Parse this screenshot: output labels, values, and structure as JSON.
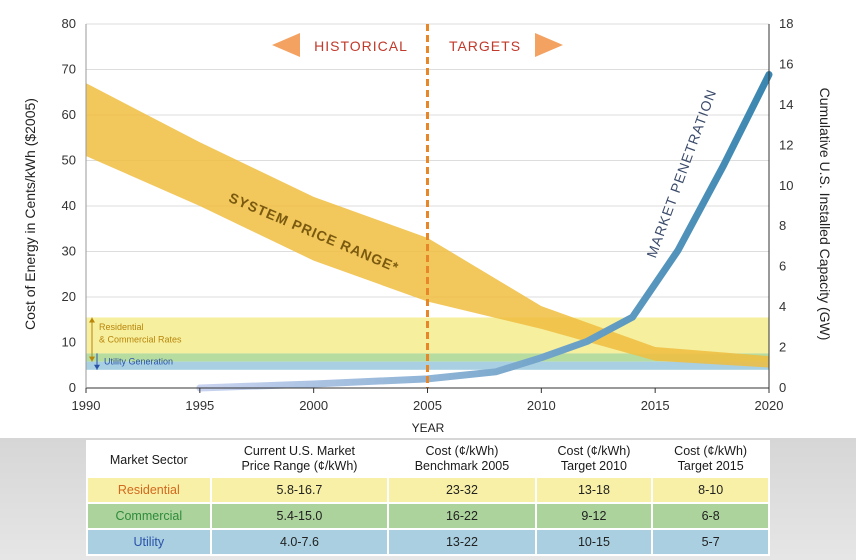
{
  "chart_data": {
    "type": "area",
    "xlabel": "YEAR",
    "ylabel_left": "Cost of Energy in Cents/kWh ($2005)",
    "ylabel_right": "Cumulative U.S. Installed Capacity (GW)",
    "xlim": [
      1990,
      2020
    ],
    "ylim_left": [
      0,
      80
    ],
    "ylim_right": [
      0,
      18
    ],
    "x_ticks": [
      1990,
      1995,
      2000,
      2005,
      2010,
      2015,
      2020
    ],
    "y_ticks_left": [
      0,
      10,
      20,
      30,
      40,
      50,
      60,
      70,
      80
    ],
    "y_ticks_right": [
      0,
      2,
      4,
      6,
      8,
      10,
      12,
      14,
      16,
      18
    ],
    "grid": true,
    "divider_year": 2005,
    "historical_label": "HISTORICAL",
    "targets_label": "TARGETS",
    "colors": {
      "price_band": "#f0bd3e",
      "penetration": "#3a86b0",
      "divider": "#e8862a",
      "historical_text": "#c0392b",
      "residential_band": "#f6ef9e",
      "commercial_band": "#b7dca0",
      "utility_band": "#a8d0e2"
    },
    "series": [
      {
        "name": "SYSTEM PRICE RANGE*",
        "kind": "band",
        "axis": "left",
        "x": [
          1990,
          1995,
          2000,
          2005,
          2010,
          2015,
          2020
        ],
        "upper": [
          67,
          54,
          42,
          33,
          18,
          9,
          7
        ],
        "lower": [
          51,
          40,
          28,
          19,
          13,
          6,
          4.5
        ]
      },
      {
        "name": "MARKET PENETRATION",
        "kind": "line",
        "axis": "right",
        "x": [
          1995,
          2000,
          2005,
          2008,
          2010,
          2012,
          2014,
          2016,
          2018,
          2020
        ],
        "values": [
          0,
          0.2,
          0.45,
          0.8,
          1.5,
          2.3,
          3.5,
          6.8,
          11,
          15.5
        ]
      }
    ],
    "rate_bands": [
      {
        "label": "Residential\n& Commercial Rates",
        "range": [
          5.8,
          15.5
        ]
      },
      {
        "label": "Utility Generation",
        "range": [
          4.0,
          7.6
        ]
      }
    ]
  },
  "table": {
    "headers": [
      "Market Sector",
      "Current U.S. Market\nPrice Range (¢/kWh)",
      "Cost (¢/kWh)\nBenchmark 2005",
      "Cost (¢/kWh)\nTarget 2010",
      "Cost (¢/kWh)\nTarget 2015"
    ],
    "rows": [
      {
        "sector": "Residential",
        "values": [
          "5.8-16.7",
          "23-32",
          "13-18",
          "8-10"
        ]
      },
      {
        "sector": "Commercial",
        "values": [
          "5.4-15.0",
          "16-22",
          "9-12",
          "6-8"
        ]
      },
      {
        "sector": "Utility",
        "values": [
          "4.0-7.6",
          "13-22",
          "10-15",
          "5-7"
        ]
      }
    ]
  }
}
